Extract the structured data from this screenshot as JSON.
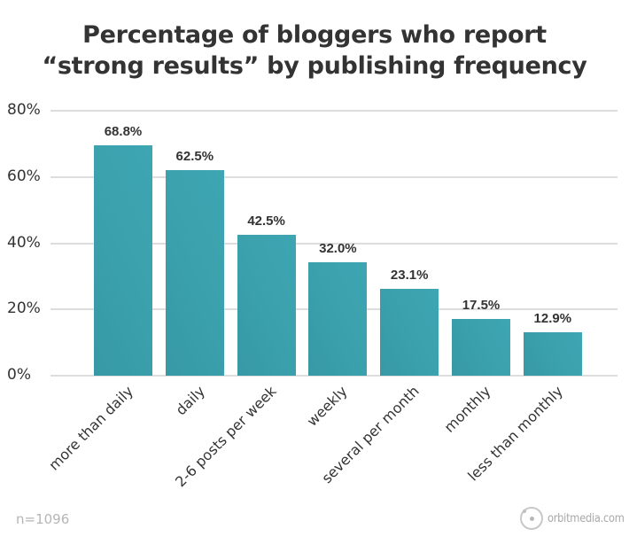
{
  "chart_data": {
    "type": "bar",
    "title": "Percentage of bloggers who report “strong results” by publishing frequency",
    "title_lines": [
      "Percentage of bloggers who report",
      "“strong results” by publishing frequency"
    ],
    "categories": [
      "more than daily",
      "daily",
      "2-6 posts per week",
      "weekly",
      "several per month",
      "monthly",
      "less than monthly"
    ],
    "values": [
      68.8,
      62.5,
      42.5,
      32.0,
      23.1,
      17.5,
      12.9
    ],
    "value_labels": [
      "68.8%",
      "62.5%",
      "42.5%",
      "32.0%",
      "23.1%",
      "17.5%",
      "12.9%"
    ],
    "bar_display_heights_pct": [
      69.5,
      62.0,
      42.5,
      34.2,
      26.3,
      17.2,
      13.0
    ],
    "xlabel": "",
    "ylabel": "",
    "ylim": [
      0,
      80
    ],
    "yticks": [
      "0%",
      "20%",
      "40%",
      "60%",
      "80%"
    ],
    "grid": true,
    "legend": "none",
    "bar_color": "#3aa0ac",
    "annotations": [
      "n=1096",
      "orbitmedia.com"
    ]
  },
  "footer": {
    "sample_size": "n=1096",
    "brand": "orbitmedia.com"
  }
}
